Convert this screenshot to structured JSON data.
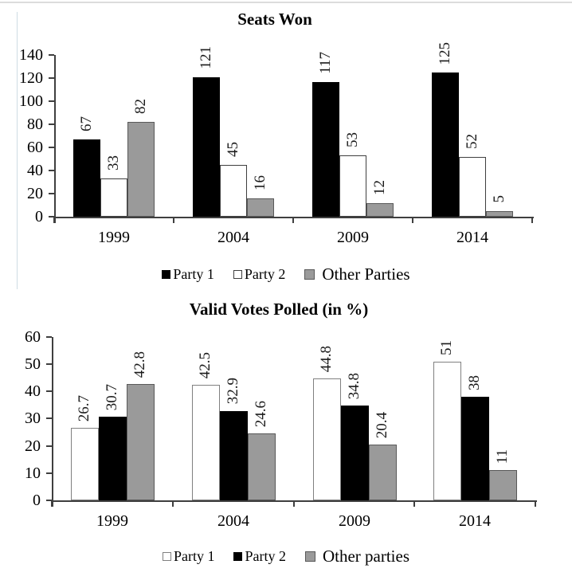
{
  "colors": {
    "axis": "#3f3f3f",
    "bar_black": "#000000",
    "bar_white": "#ffffff",
    "bar_gray": "#9a9a9a",
    "top_rule": "#dcdcdc",
    "left_rule": "#cfdce4"
  },
  "chart_data": [
    {
      "type": "bar",
      "title": "Seats Won",
      "categories": [
        "1999",
        "2004",
        "2009",
        "2014"
      ],
      "series": [
        {
          "name": "Party 1",
          "values": [
            67,
            121,
            117,
            125
          ],
          "fill": "#000000",
          "stroke": "#000000"
        },
        {
          "name": "Party 2",
          "values": [
            33,
            45,
            53,
            52
          ],
          "fill": "#ffffff",
          "stroke": "#3f3f3f"
        },
        {
          "name": "Other Parties",
          "values": [
            82,
            16,
            12,
            5
          ],
          "fill": "#9a9a9a",
          "stroke": "#595959"
        }
      ],
      "ylim": [
        0,
        140
      ],
      "yticks": [
        0,
        20,
        40,
        60,
        80,
        100,
        120,
        140
      ],
      "xlabel": "",
      "ylabel": "",
      "bar_value_labels": true,
      "value_label_rotation": 90,
      "legend_position": "bottom",
      "grid": false
    },
    {
      "type": "bar",
      "title": "Valid Votes Polled (in %)",
      "categories": [
        "1999",
        "2004",
        "2009",
        "2014"
      ],
      "series": [
        {
          "name": "Party 1",
          "values": [
            26.7,
            42.5,
            44.8,
            51
          ],
          "fill": "#ffffff",
          "stroke": "#808080"
        },
        {
          "name": "Party 2",
          "values": [
            30.7,
            32.9,
            34.8,
            38
          ],
          "fill": "#000000",
          "stroke": "#000000"
        },
        {
          "name": "Other parties",
          "values": [
            42.8,
            24.6,
            20.4,
            11
          ],
          "fill": "#9a9a9a",
          "stroke": "#595959"
        }
      ],
      "ylim": [
        0,
        60
      ],
      "yticks": [
        0,
        10,
        20,
        30,
        40,
        50,
        60
      ],
      "xlabel": "",
      "ylabel": "",
      "bar_value_labels": true,
      "value_label_rotation": 90,
      "legend_position": "bottom",
      "grid": false
    }
  ]
}
